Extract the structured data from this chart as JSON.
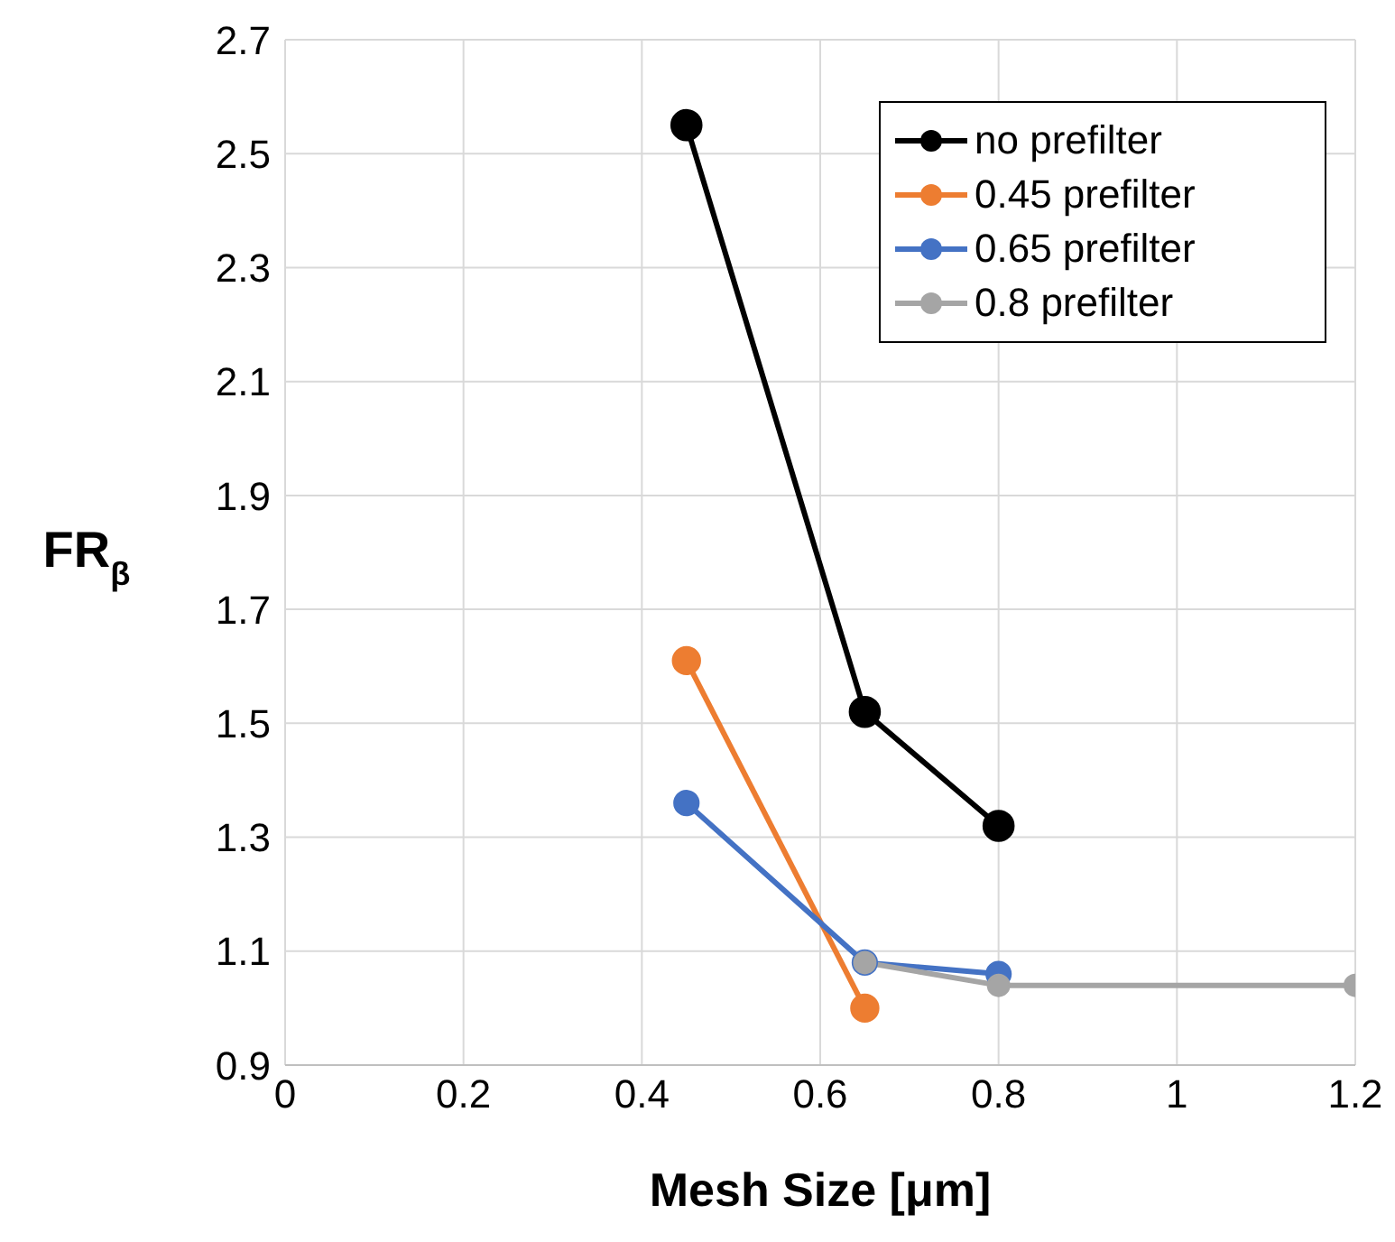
{
  "chart_data": {
    "type": "line",
    "xlabel": "Mesh Size [μm]",
    "ylabel": "FR$_{β}$",
    "xlim": [
      0,
      1.2
    ],
    "xticks": [
      0,
      0.2,
      0.4,
      0.6,
      0.8,
      1,
      1.2
    ],
    "ylim": [
      0.9,
      2.7
    ],
    "yticks": [
      0.9,
      1.1,
      1.3,
      1.5,
      1.7,
      1.9,
      2.1,
      2.3,
      2.5,
      2.7
    ],
    "grid": true,
    "legend": "top right",
    "marker": "circle",
    "line_style": "solid",
    "series": [
      {
        "name": "no prefilter",
        "color": "#000000",
        "x": [
          0.45,
          0.65,
          0.8
        ],
        "values": [
          2.55,
          1.52,
          1.32
        ]
      },
      {
        "name": "0.45 prefilter",
        "color": "#ed7d31",
        "x": [
          0.45,
          0.65
        ],
        "values": [
          1.61,
          1.0
        ]
      },
      {
        "name": "0.65 prefilter",
        "color": "#4472c4",
        "x": [
          0.45,
          0.65,
          0.8
        ],
        "values": [
          1.36,
          1.08,
          1.06
        ]
      },
      {
        "name": "0.8 prefilter",
        "color": "#a5a5a5",
        "x": [
          0.65,
          0.8,
          1.2
        ],
        "values": [
          1.08,
          1.04,
          1.04
        ]
      }
    ]
  }
}
